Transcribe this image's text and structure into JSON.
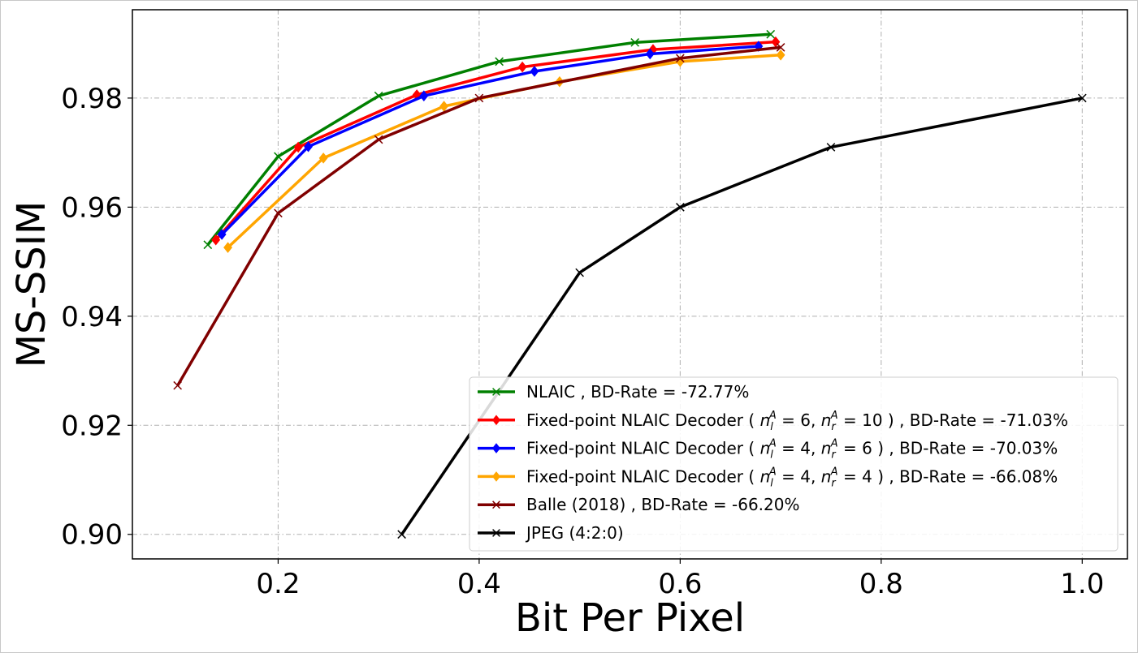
{
  "chart_data": {
    "type": "line",
    "title": "",
    "xlabel": "Bit Per Pixel",
    "ylabel": "MS-SSIM",
    "xlim": [
      0.055,
      1.045
    ],
    "ylim": [
      0.8955,
      0.9962
    ],
    "xticks": [
      {
        "value": 0.2,
        "label": "0.2"
      },
      {
        "value": 0.4,
        "label": "0.4"
      },
      {
        "value": 0.6,
        "label": "0.6"
      },
      {
        "value": 0.8,
        "label": "0.8"
      },
      {
        "value": 1.0,
        "label": "1.0"
      }
    ],
    "yticks": [
      {
        "value": 0.9,
        "label": "0.90"
      },
      {
        "value": 0.92,
        "label": "0.92"
      },
      {
        "value": 0.94,
        "label": "0.94"
      },
      {
        "value": 0.96,
        "label": "0.96"
      },
      {
        "value": 0.98,
        "label": "0.98"
      }
    ],
    "grid": true,
    "legend_position": "lower-right",
    "series": [
      {
        "name": "NLAIC , BD-Rate = -72.77%",
        "color": "#008000",
        "marker": "x",
        "x": [
          0.13,
          0.2,
          0.3,
          0.42,
          0.555,
          0.69
        ],
        "y": [
          0.9531,
          0.9693,
          0.9804,
          0.9867,
          0.9902,
          0.9917
        ]
      },
      {
        "name": "Fixed-point NLAIC Decoder ( n_l^A = 6, n_r^A = 10 ) , BD-Rate = -71.03%",
        "legend_parts": [
          "Fixed-point NLAIC Decoder ( ",
          "6",
          "10",
          " ) , BD-Rate = -71.03%"
        ],
        "color": "#ff0000",
        "marker": "diamond",
        "x": [
          0.138,
          0.22,
          0.338,
          0.443,
          0.573,
          0.695
        ],
        "y": [
          0.954,
          0.971,
          0.9806,
          0.9857,
          0.9889,
          0.9903
        ]
      },
      {
        "name": "Fixed-point NLAIC Decoder ( n_l^A = 4, n_r^A = 6 ) , BD-Rate = -70.03%",
        "legend_parts": [
          "Fixed-point NLAIC Decoder ( ",
          "4",
          "6",
          " ) , BD-Rate = -70.03%"
        ],
        "color": "#0000ff",
        "marker": "diamond",
        "x": [
          0.144,
          0.23,
          0.345,
          0.455,
          0.57,
          0.678
        ],
        "y": [
          0.955,
          0.9711,
          0.9804,
          0.9849,
          0.9881,
          0.9895
        ]
      },
      {
        "name": "Fixed-point NLAIC Decoder ( n_l^A = 4, n_r^A = 4 ) , BD-Rate = -66.08%",
        "legend_parts": [
          "Fixed-point NLAIC Decoder ( ",
          "4",
          "4",
          " ) , BD-Rate = -66.08%"
        ],
        "color": "#ffa500",
        "marker": "diamond",
        "x": [
          0.15,
          0.245,
          0.365,
          0.48,
          0.6,
          0.7
        ],
        "y": [
          0.9526,
          0.969,
          0.9785,
          0.983,
          0.9867,
          0.9879
        ]
      },
      {
        "name": "Balle (2018) , BD-Rate = -66.20%",
        "color": "#800000",
        "marker": "x",
        "x": [
          0.1,
          0.2,
          0.3,
          0.4,
          0.6,
          0.7
        ],
        "y": [
          0.9273,
          0.9589,
          0.9724,
          0.98,
          0.9873,
          0.9893
        ]
      },
      {
        "name": "JPEG (4:2:0)",
        "color": "#000000",
        "marker": "x",
        "x": [
          0.323,
          0.5,
          0.6,
          0.75,
          1.0
        ],
        "y": [
          0.9,
          0.948,
          0.96,
          0.971,
          0.98
        ]
      }
    ]
  }
}
